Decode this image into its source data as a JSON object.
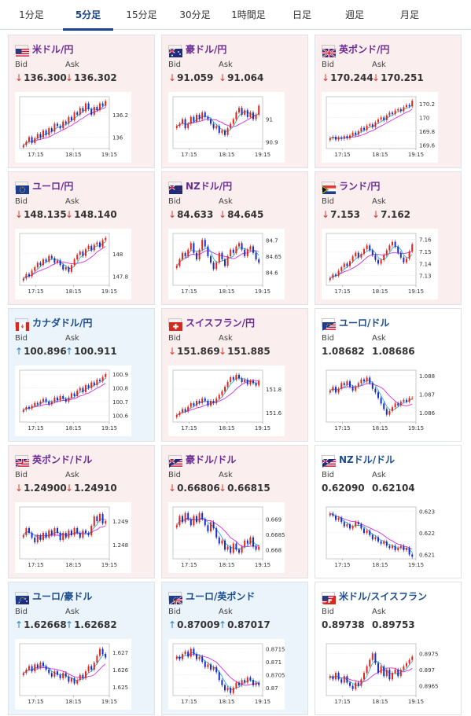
{
  "tabs": [
    {
      "label": "1分足",
      "active": false
    },
    {
      "label": "5分足",
      "active": true
    },
    {
      "label": "15分足",
      "active": false
    },
    {
      "label": "30分足",
      "active": false
    },
    {
      "label": "1時間足",
      "active": false
    },
    {
      "label": "日足",
      "active": false
    },
    {
      "label": "週足",
      "active": false
    },
    {
      "label": "月足",
      "active": false
    }
  ],
  "quote_labels": {
    "bid": "Bid",
    "ask": "Ask"
  },
  "colors": {
    "bullish_candle": "#e0261a",
    "bearish_candle": "#1a2cc8",
    "moving_average_short": "#2eb3c9",
    "moving_average_long": "#d12ee6",
    "arrow_down": "#d43c2c",
    "arrow_up": "#2a7fc1",
    "active_tab": "#17428c"
  },
  "cards": [
    {
      "pair": "米ドル/円",
      "flag": "flag-us-icon",
      "direction": "down",
      "bid": "136.300",
      "ask": "136.302",
      "chart_data": {
        "type": "candlestick",
        "x_ticks": [
          "17:15",
          "18:15",
          "19:15"
        ],
        "y_ticks": [
          "136.2",
          "136"
        ],
        "ylim": [
          135.9,
          136.36
        ],
        "close": [
          135.93,
          135.96,
          136.0,
          135.95,
          135.99,
          136.03,
          136.0,
          136.06,
          136.02,
          136.08,
          136.05,
          136.12,
          136.1,
          136.08,
          136.14,
          136.12,
          136.18,
          136.15,
          136.22,
          136.2,
          136.26,
          136.23,
          136.3,
          136.25,
          136.2,
          136.27,
          136.24,
          136.3,
          136.28,
          136.32
        ]
      }
    },
    {
      "pair": "豪ドル/円",
      "flag": "flag-au-icon",
      "direction": "down",
      "bid": "91.059",
      "ask": "91.064",
      "chart_data": {
        "type": "candlestick",
        "x_ticks": [
          "17:15",
          "18:15",
          "19:15"
        ],
        "y_ticks": [
          "91",
          "90.9"
        ],
        "ylim": [
          90.87,
          91.1
        ],
        "close": [
          90.97,
          90.98,
          91.0,
          90.96,
          90.98,
          91.01,
          90.99,
          91.02,
          91.0,
          91.03,
          91.01,
          91.0,
          90.98,
          90.96,
          90.97,
          90.94,
          90.95,
          90.93,
          90.96,
          90.98,
          91.0,
          91.03,
          91.05,
          91.02,
          91.04,
          91.01,
          91.03,
          91.0,
          91.02,
          91.06
        ]
      }
    },
    {
      "pair": "英ポンド/円",
      "flag": "flag-gb-icon",
      "direction": "down",
      "bid": "170.244",
      "ask": "170.251",
      "chart_data": {
        "type": "candlestick",
        "x_ticks": [
          "17:15",
          "18:15",
          "19:15"
        ],
        "y_ticks": [
          "170.2",
          "170",
          "169.8",
          "169.6"
        ],
        "ylim": [
          169.55,
          170.3
        ],
        "close": [
          169.7,
          169.72,
          169.68,
          169.71,
          169.69,
          169.73,
          169.7,
          169.74,
          169.78,
          169.75,
          169.8,
          169.85,
          169.82,
          169.88,
          169.9,
          169.86,
          169.93,
          169.97,
          170.0,
          169.96,
          170.03,
          170.07,
          170.05,
          170.1,
          170.12,
          170.09,
          170.15,
          170.18,
          170.16,
          170.24
        ]
      }
    },
    {
      "pair": "ユーロ/円",
      "flag": "flag-eu-icon",
      "direction": "down",
      "bid": "148.135",
      "ask": "148.140",
      "chart_data": {
        "type": "candlestick",
        "x_ticks": [
          "17:15",
          "18:15",
          "19:15"
        ],
        "y_ticks": [
          "148",
          "147.8"
        ],
        "ylim": [
          147.72,
          148.18
        ],
        "close": [
          147.78,
          147.82,
          147.8,
          147.85,
          147.88,
          147.92,
          147.9,
          147.95,
          147.93,
          147.98,
          147.96,
          147.92,
          147.94,
          147.9,
          147.86,
          147.88,
          147.84,
          147.9,
          147.95,
          147.99,
          148.02,
          147.98,
          148.04,
          148.07,
          148.03,
          148.08,
          148.1,
          148.06,
          148.12,
          148.14
        ]
      }
    },
    {
      "pair": "NZドル/円",
      "flag": "flag-nz-icon",
      "direction": "down",
      "bid": "84.633",
      "ask": "84.645",
      "chart_data": {
        "type": "candlestick",
        "x_ticks": [
          "17:15",
          "18:15",
          "19:15"
        ],
        "y_ticks": [
          "84.7",
          "84.65",
          "84.6"
        ],
        "ylim": [
          84.56,
          84.72
        ],
        "close": [
          84.62,
          84.64,
          84.66,
          84.65,
          84.67,
          84.69,
          84.66,
          84.64,
          84.67,
          84.7,
          84.68,
          84.65,
          84.63,
          84.61,
          84.63,
          84.66,
          84.64,
          84.62,
          84.65,
          84.67,
          84.66,
          84.68,
          84.69,
          84.67,
          84.65,
          84.67,
          84.68,
          84.66,
          84.64,
          84.63
        ]
      }
    },
    {
      "pair": "ランド/円",
      "flag": "flag-za-icon",
      "direction": "down",
      "bid": "7.153",
      "ask": "7.162",
      "chart_data": {
        "type": "candlestick",
        "x_ticks": [
          "17:15",
          "18:15",
          "19:15"
        ],
        "y_ticks": [
          "7.16",
          "7.15",
          "7.14",
          "7.13"
        ],
        "ylim": [
          7.122,
          7.165
        ],
        "close": [
          7.128,
          7.131,
          7.13,
          7.134,
          7.137,
          7.14,
          7.138,
          7.142,
          7.146,
          7.149,
          7.145,
          7.148,
          7.152,
          7.155,
          7.151,
          7.147,
          7.143,
          7.14,
          7.143,
          7.147,
          7.151,
          7.155,
          7.158,
          7.154,
          7.149,
          7.145,
          7.141,
          7.144,
          7.15,
          7.156
        ]
      }
    },
    {
      "pair": "カナダドル/円",
      "flag": "flag-ca-icon",
      "direction": "up",
      "bid": "100.896",
      "ask": "100.911",
      "chart_data": {
        "type": "candlestick",
        "x_ticks": [
          "17:15",
          "18:15",
          "19:15"
        ],
        "y_ticks": [
          "100.9",
          "100.8",
          "100.7",
          "100.6"
        ],
        "ylim": [
          100.55,
          100.93
        ],
        "close": [
          100.64,
          100.66,
          100.65,
          100.67,
          100.69,
          100.68,
          100.7,
          100.72,
          100.7,
          100.68,
          100.7,
          100.73,
          100.71,
          100.74,
          100.72,
          100.7,
          100.73,
          100.76,
          100.74,
          100.78,
          100.8,
          100.77,
          100.82,
          100.8,
          100.84,
          100.82,
          100.86,
          100.85,
          100.88,
          100.9
        ]
      }
    },
    {
      "pair": "スイスフラン/円",
      "flag": "flag-ch-icon",
      "direction": "down",
      "bid": "151.869",
      "ask": "151.885",
      "chart_data": {
        "type": "candlestick",
        "x_ticks": [
          "17:15",
          "18:15",
          "19:15"
        ],
        "y_ticks": [
          "151.8",
          "151.6"
        ],
        "ylim": [
          151.52,
          151.96
        ],
        "close": [
          151.58,
          151.6,
          151.63,
          151.61,
          151.65,
          151.68,
          151.66,
          151.7,
          151.68,
          151.72,
          151.7,
          151.66,
          151.7,
          151.68,
          151.72,
          151.75,
          151.78,
          151.82,
          151.86,
          151.9,
          151.88,
          151.92,
          151.89,
          151.86,
          151.88,
          151.84,
          151.87,
          151.85,
          151.83,
          151.87
        ]
      }
    },
    {
      "pair": "ユーロ/ドル",
      "flag": "flag-eu-us-icon",
      "direction": "flat",
      "bid": "1.08682",
      "ask": "1.08686",
      "chart_data": {
        "type": "candlestick",
        "x_ticks": [
          "17:15",
          "18:15",
          "19:15"
        ],
        "y_ticks": [
          "1.088",
          "1.087",
          "1.086"
        ],
        "ylim": [
          1.0855,
          1.0883
        ],
        "close": [
          1.0872,
          1.0874,
          1.0871,
          1.0873,
          1.0876,
          1.0875,
          1.0877,
          1.0874,
          1.0872,
          1.0874,
          1.0876,
          1.0878,
          1.0877,
          1.0879,
          1.0876,
          1.0873,
          1.0871,
          1.0868,
          1.0865,
          1.0862,
          1.0859,
          1.0861,
          1.0863,
          1.0865,
          1.0864,
          1.0866,
          1.0867,
          1.0866,
          1.0868,
          1.0868
        ]
      }
    },
    {
      "pair": "英ポンド/ドル",
      "flag": "flag-gb-us-icon",
      "direction": "down",
      "bid": "1.24900",
      "ask": "1.24910",
      "chart_data": {
        "type": "candlestick",
        "x_ticks": [
          "17:15",
          "18:15",
          "19:15"
        ],
        "y_ticks": [
          "1.249",
          "1.248"
        ],
        "ylim": [
          1.2474,
          1.2496
        ],
        "close": [
          1.2484,
          1.2487,
          1.2485,
          1.2483,
          1.2481,
          1.2484,
          1.2482,
          1.2485,
          1.2483,
          1.2486,
          1.2484,
          1.2487,
          1.2485,
          1.2482,
          1.2485,
          1.2483,
          1.2486,
          1.2484,
          1.2487,
          1.2485,
          1.2483,
          1.2486,
          1.2485,
          1.2484,
          1.2488,
          1.2492,
          1.249,
          1.2493,
          1.2489,
          1.249
        ]
      }
    },
    {
      "pair": "豪ドル/ドル",
      "flag": "flag-au-us-icon",
      "direction": "down",
      "bid": "0.66806",
      "ask": "0.66815",
      "chart_data": {
        "type": "candlestick",
        "x_ticks": [
          "17:15",
          "18:15",
          "19:15"
        ],
        "y_ticks": [
          "0.669",
          "0.6685",
          "0.668"
        ],
        "ylim": [
          0.6677,
          0.6694
        ],
        "close": [
          0.6688,
          0.6691,
          0.6689,
          0.6692,
          0.669,
          0.6688,
          0.6691,
          0.6689,
          0.6692,
          0.669,
          0.6688,
          0.6686,
          0.6689,
          0.6687,
          0.6684,
          0.6682,
          0.6683,
          0.668,
          0.6681,
          0.6679,
          0.6682,
          0.668,
          0.6679,
          0.6681,
          0.6683,
          0.6682,
          0.6684,
          0.6681,
          0.668,
          0.6681
        ]
      }
    },
    {
      "pair": "NZドル/ドル",
      "flag": "flag-nz-us-icon",
      "direction": "flat",
      "bid": "0.62090",
      "ask": "0.62104",
      "chart_data": {
        "type": "candlestick",
        "x_ticks": [
          "17:15",
          "18:15",
          "19:15"
        ],
        "y_ticks": [
          "0.623",
          "0.622",
          "0.621"
        ],
        "ylim": [
          0.6208,
          0.6232
        ],
        "close": [
          0.6229,
          0.6228,
          0.6226,
          0.6227,
          0.6225,
          0.6223,
          0.6224,
          0.6222,
          0.6223,
          0.6225,
          0.6224,
          0.6222,
          0.622,
          0.6221,
          0.6219,
          0.6217,
          0.6218,
          0.6216,
          0.6215,
          0.6216,
          0.6214,
          0.6213,
          0.6214,
          0.6212,
          0.6213,
          0.6214,
          0.6212,
          0.6213,
          0.621,
          0.6209
        ]
      }
    },
    {
      "pair": "ユーロ/豪ドル",
      "flag": "flag-eu-au-icon",
      "direction": "up",
      "bid": "1.62668",
      "ask": "1.62682",
      "chart_data": {
        "type": "candlestick",
        "x_ticks": [
          "17:15",
          "18:15",
          "19:15"
        ],
        "y_ticks": [
          "1.627",
          "1.626",
          "1.625"
        ],
        "ylim": [
          1.6245,
          1.6275
        ],
        "close": [
          1.6258,
          1.626,
          1.6262,
          1.6259,
          1.6263,
          1.6261,
          1.6264,
          1.6262,
          1.626,
          1.6258,
          1.6256,
          1.6259,
          1.6257,
          1.6255,
          1.6258,
          1.6256,
          1.6253,
          1.6255,
          1.6252,
          1.6254,
          1.6257,
          1.6255,
          1.6259,
          1.6262,
          1.626,
          1.6264,
          1.6268,
          1.6272,
          1.6269,
          1.6267
        ]
      }
    },
    {
      "pair": "ユーロ/英ポンド",
      "flag": "flag-eu-gb-icon",
      "direction": "up",
      "bid": "0.87009",
      "ask": "0.87017",
      "chart_data": {
        "type": "candlestick",
        "x_ticks": [
          "17:15",
          "18:15",
          "19:15"
        ],
        "y_ticks": [
          "0.8715",
          "0.871",
          "0.8705",
          "0.87"
        ],
        "ylim": [
          0.8697,
          0.8717
        ],
        "close": [
          0.8712,
          0.8711,
          0.8713,
          0.8714,
          0.8712,
          0.8715,
          0.8713,
          0.8711,
          0.8712,
          0.871,
          0.8708,
          0.8709,
          0.8707,
          0.8708,
          0.8706,
          0.8703,
          0.8701,
          0.8699,
          0.87,
          0.8698,
          0.87,
          0.8702,
          0.8701,
          0.8703,
          0.8702,
          0.8704,
          0.8703,
          0.8701,
          0.8702,
          0.8701
        ]
      }
    },
    {
      "pair": "米ドル/スイスフラン",
      "flag": "flag-us-ch-icon",
      "direction": "flat",
      "bid": "0.89738",
      "ask": "0.89753",
      "chart_data": {
        "type": "candlestick",
        "x_ticks": [
          "17:15",
          "18:15",
          "19:15"
        ],
        "y_ticks": [
          "0.8975",
          "0.897",
          "0.8965"
        ],
        "ylim": [
          0.8962,
          0.8978
        ],
        "close": [
          0.8968,
          0.8967,
          0.8969,
          0.8967,
          0.8966,
          0.8968,
          0.8966,
          0.8965,
          0.8964,
          0.8966,
          0.8965,
          0.8967,
          0.8969,
          0.8971,
          0.8973,
          0.8975,
          0.8972,
          0.8969,
          0.8971,
          0.8968,
          0.897,
          0.8967,
          0.8969,
          0.897,
          0.8968,
          0.897,
          0.8971,
          0.8972,
          0.8973,
          0.8974
        ]
      }
    }
  ]
}
